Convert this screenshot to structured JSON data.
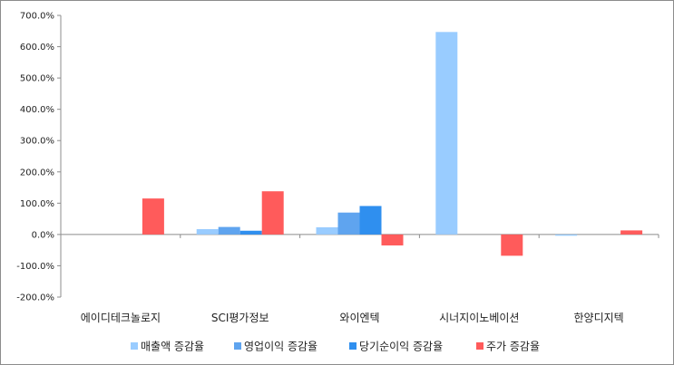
{
  "chart_data": {
    "type": "bar",
    "title": "",
    "xlabel": "",
    "ylabel": "",
    "categories": [
      "에이디테크놀로지",
      "SCI평가정보",
      "와이엔텍",
      "시너지이노베이션",
      "한양디지텍"
    ],
    "series": [
      {
        "name": "매출액 증감율",
        "color": "#99ccff",
        "values": [
          0.0,
          17.0,
          23.0,
          647.0,
          -4.0
        ]
      },
      {
        "name": "영업이익 증감율",
        "color": "#5fa4ef",
        "values": [
          0.0,
          24.0,
          70.0,
          0.0,
          0.0
        ]
      },
      {
        "name": "당기순이익 증감율",
        "color": "#2f8fef",
        "values": [
          0.0,
          12.0,
          91.0,
          0.0,
          0.0
        ]
      },
      {
        "name": "주가 증감율",
        "color": "#ff5b5b",
        "values": [
          115.0,
          138.0,
          -35.0,
          -68.0,
          13.0
        ]
      }
    ],
    "ylim": [
      -200,
      700
    ],
    "yticks": [
      -200,
      -100,
      0,
      100,
      200,
      300,
      400,
      500,
      600,
      700
    ],
    "ytick_labels": [
      "-200.0%",
      "-100.0%",
      "0.0%",
      "100.0%",
      "200.0%",
      "300.0%",
      "400.0%",
      "500.0%",
      "600.0%",
      "700.0%"
    ],
    "grid": false,
    "legend_position": "bottom"
  }
}
